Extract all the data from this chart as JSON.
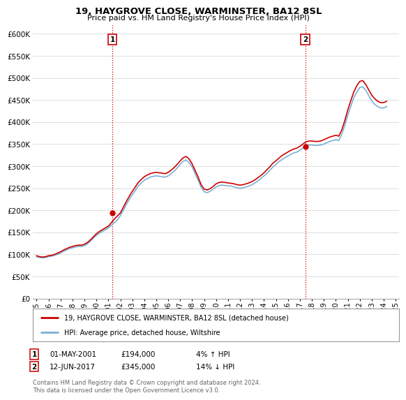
{
  "title": "19, HAYGROVE CLOSE, WARMINSTER, BA12 8SL",
  "subtitle": "Price paid vs. HM Land Registry's House Price Index (HPI)",
  "ylim": [
    0,
    620000
  ],
  "yticks": [
    0,
    50000,
    100000,
    150000,
    200000,
    250000,
    300000,
    350000,
    400000,
    450000,
    500000,
    550000,
    600000
  ],
  "sale1_date": "01-MAY-2001",
  "sale1_price": 194000,
  "sale1_pct": "4% ↑ HPI",
  "sale2_date": "12-JUN-2017",
  "sale2_price": 345000,
  "sale2_pct": "14% ↓ HPI",
  "house_color": "#cc0000",
  "hpi_color": "#7ab0d4",
  "legend_house": "19, HAYGROVE CLOSE, WARMINSTER, BA12 8SL (detached house)",
  "legend_hpi": "HPI: Average price, detached house, Wiltshire",
  "footnote": "Contains HM Land Registry data © Crown copyright and database right 2024.\nThis data is licensed under the Open Government Licence v3.0.",
  "hpi_data": {
    "dates": [
      1995.0,
      1995.25,
      1995.5,
      1995.75,
      1996.0,
      1996.25,
      1996.5,
      1996.75,
      1997.0,
      1997.25,
      1997.5,
      1997.75,
      1998.0,
      1998.25,
      1998.5,
      1998.75,
      1999.0,
      1999.25,
      1999.5,
      1999.75,
      2000.0,
      2000.25,
      2000.5,
      2000.75,
      2001.0,
      2001.25,
      2001.5,
      2001.75,
      2002.0,
      2002.25,
      2002.5,
      2002.75,
      2003.0,
      2003.25,
      2003.5,
      2003.75,
      2004.0,
      2004.25,
      2004.5,
      2004.75,
      2005.0,
      2005.25,
      2005.5,
      2005.75,
      2006.0,
      2006.25,
      2006.5,
      2006.75,
      2007.0,
      2007.25,
      2007.5,
      2007.75,
      2008.0,
      2008.25,
      2008.5,
      2008.75,
      2009.0,
      2009.25,
      2009.5,
      2009.75,
      2010.0,
      2010.25,
      2010.5,
      2010.75,
      2011.0,
      2011.25,
      2011.5,
      2011.75,
      2012.0,
      2012.25,
      2012.5,
      2012.75,
      2013.0,
      2013.25,
      2013.5,
      2013.75,
      2014.0,
      2014.25,
      2014.5,
      2014.75,
      2015.0,
      2015.25,
      2015.5,
      2015.75,
      2016.0,
      2016.25,
      2016.5,
      2016.75,
      2017.0,
      2017.25,
      2017.5,
      2017.75,
      2018.0,
      2018.25,
      2018.5,
      2018.75,
      2019.0,
      2019.25,
      2019.5,
      2019.75,
      2020.0,
      2020.25,
      2020.5,
      2020.75,
      2021.0,
      2021.25,
      2021.5,
      2021.75,
      2022.0,
      2022.25,
      2022.5,
      2022.75,
      2023.0,
      2023.25,
      2023.5,
      2023.75,
      2024.0,
      2024.25
    ],
    "values": [
      95000,
      93000,
      92000,
      93000,
      95000,
      96000,
      98000,
      100000,
      103000,
      107000,
      110000,
      113000,
      115000,
      117000,
      118000,
      118000,
      120000,
      124000,
      130000,
      137000,
      143000,
      148000,
      152000,
      156000,
      160000,
      166000,
      172000,
      178000,
      188000,
      200000,
      213000,
      225000,
      235000,
      245000,
      255000,
      262000,
      268000,
      272000,
      275000,
      277000,
      278000,
      277000,
      276000,
      275000,
      278000,
      283000,
      289000,
      296000,
      304000,
      311000,
      314000,
      308000,
      298000,
      283000,
      268000,
      252000,
      242000,
      240000,
      243000,
      248000,
      253000,
      256000,
      257000,
      256000,
      255000,
      255000,
      253000,
      251000,
      250000,
      251000,
      253000,
      255000,
      258000,
      262000,
      267000,
      272000,
      278000,
      284000,
      291000,
      298000,
      304000,
      310000,
      315000,
      319000,
      323000,
      327000,
      330000,
      332000,
      336000,
      341000,
      346000,
      348000,
      348000,
      347000,
      347000,
      348000,
      350000,
      353000,
      356000,
      358000,
      360000,
      358000,
      372000,
      392000,
      415000,
      435000,
      455000,
      468000,
      478000,
      480000,
      472000,
      460000,
      448000,
      440000,
      435000,
      432000,
      432000,
      435000
    ]
  },
  "house_data": {
    "dates": [
      1995.0,
      1995.25,
      1995.5,
      1995.75,
      1996.0,
      1996.25,
      1996.5,
      1996.75,
      1997.0,
      1997.25,
      1997.5,
      1997.75,
      1998.0,
      1998.25,
      1998.5,
      1998.75,
      1999.0,
      1999.25,
      1999.5,
      1999.75,
      2000.0,
      2000.25,
      2000.5,
      2000.75,
      2001.0,
      2001.25,
      2001.5,
      2001.75,
      2002.0,
      2002.25,
      2002.5,
      2002.75,
      2003.0,
      2003.25,
      2003.5,
      2003.75,
      2004.0,
      2004.25,
      2004.5,
      2004.75,
      2005.0,
      2005.25,
      2005.5,
      2005.75,
      2006.0,
      2006.25,
      2006.5,
      2006.75,
      2007.0,
      2007.25,
      2007.5,
      2007.75,
      2008.0,
      2008.25,
      2008.5,
      2008.75,
      2009.0,
      2009.25,
      2009.5,
      2009.75,
      2010.0,
      2010.25,
      2010.5,
      2010.75,
      2011.0,
      2011.25,
      2011.5,
      2011.75,
      2012.0,
      2012.25,
      2012.5,
      2012.75,
      2013.0,
      2013.25,
      2013.5,
      2013.75,
      2014.0,
      2014.25,
      2014.5,
      2014.75,
      2015.0,
      2015.25,
      2015.5,
      2015.75,
      2016.0,
      2016.25,
      2016.5,
      2016.75,
      2017.0,
      2017.25,
      2017.5,
      2017.75,
      2018.0,
      2018.25,
      2018.5,
      2018.75,
      2019.0,
      2019.25,
      2019.5,
      2019.75,
      2020.0,
      2020.25,
      2020.5,
      2020.75,
      2021.0,
      2021.25,
      2021.5,
      2021.75,
      2022.0,
      2022.25,
      2022.5,
      2022.75,
      2023.0,
      2023.25,
      2023.5,
      2023.75,
      2024.0,
      2024.25
    ],
    "values": [
      97000,
      95000,
      94000,
      95000,
      97000,
      98000,
      100000,
      103000,
      106000,
      110000,
      113000,
      116000,
      118000,
      120000,
      121000,
      121000,
      123000,
      127000,
      133000,
      140000,
      147000,
      152000,
      156000,
      160000,
      164000,
      172000,
      180000,
      187000,
      194000,
      207000,
      220000,
      232000,
      243000,
      253000,
      263000,
      270000,
      276000,
      280000,
      283000,
      285000,
      286000,
      285000,
      284000,
      283000,
      286000,
      291000,
      297000,
      304000,
      312000,
      319000,
      322000,
      316000,
      305000,
      290000,
      275000,
      258000,
      248000,
      246000,
      249000,
      254000,
      260000,
      263000,
      264000,
      263000,
      262000,
      261000,
      260000,
      258000,
      257000,
      258000,
      260000,
      262000,
      265000,
      269000,
      274000,
      279000,
      285000,
      292000,
      299000,
      307000,
      312000,
      318000,
      324000,
      328000,
      332000,
      336000,
      339000,
      341000,
      345000,
      350000,
      355000,
      357000,
      357000,
      356000,
      356000,
      357000,
      360000,
      363000,
      366000,
      368000,
      370000,
      368000,
      382000,
      403000,
      427000,
      448000,
      468000,
      482000,
      492000,
      494000,
      485000,
      473000,
      461000,
      453000,
      447000,
      444000,
      444000,
      447000
    ]
  },
  "sale1_x": 2001.33,
  "sale2_x": 2017.45,
  "xlim_left": 1994.7,
  "xlim_right": 2025.3,
  "xticks": [
    1995,
    1996,
    1997,
    1998,
    1999,
    2000,
    2001,
    2002,
    2003,
    2004,
    2005,
    2006,
    2007,
    2008,
    2009,
    2010,
    2011,
    2012,
    2013,
    2014,
    2015,
    2016,
    2017,
    2018,
    2019,
    2020,
    2021,
    2022,
    2023,
    2024,
    2025
  ],
  "bg_color": "#ffffff",
  "grid_color": "#dddddd"
}
